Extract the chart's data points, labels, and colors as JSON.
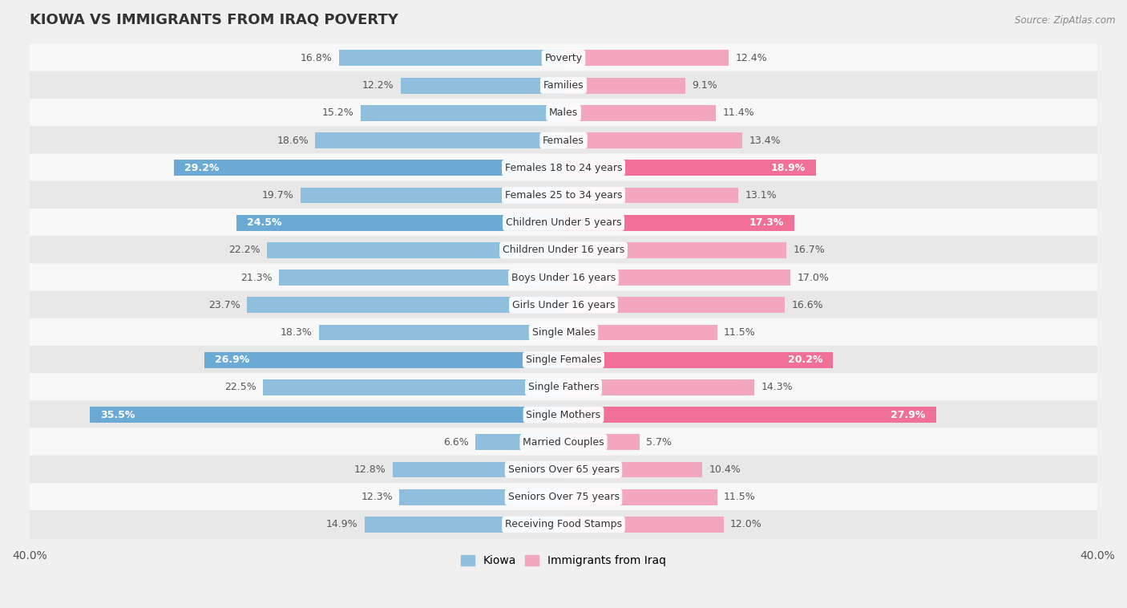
{
  "title": "KIOWA VS IMMIGRANTS FROM IRAQ POVERTY",
  "source": "Source: ZipAtlas.com",
  "categories": [
    "Poverty",
    "Families",
    "Males",
    "Females",
    "Females 18 to 24 years",
    "Females 25 to 34 years",
    "Children Under 5 years",
    "Children Under 16 years",
    "Boys Under 16 years",
    "Girls Under 16 years",
    "Single Males",
    "Single Females",
    "Single Fathers",
    "Single Mothers",
    "Married Couples",
    "Seniors Over 65 years",
    "Seniors Over 75 years",
    "Receiving Food Stamps"
  ],
  "kiowa_values": [
    16.8,
    12.2,
    15.2,
    18.6,
    29.2,
    19.7,
    24.5,
    22.2,
    21.3,
    23.7,
    18.3,
    26.9,
    22.5,
    35.5,
    6.6,
    12.8,
    12.3,
    14.9
  ],
  "iraq_values": [
    12.4,
    9.1,
    11.4,
    13.4,
    18.9,
    13.1,
    17.3,
    16.7,
    17.0,
    16.6,
    11.5,
    20.2,
    14.3,
    27.9,
    5.7,
    10.4,
    11.5,
    12.0
  ],
  "kiowa_color": "#90bedd",
  "iraq_color": "#f2a7be",
  "kiowa_highlight_color": "#6aaad4",
  "iraq_highlight_color": "#f07097",
  "highlight_rows": [
    4,
    6,
    11,
    13
  ],
  "xlim": 40.0,
  "bar_height": 0.58,
  "background_color": "#f0f0f0",
  "row_color_even": "#f8f8f8",
  "row_color_odd": "#e8e8e8",
  "label_fontsize": 9.0,
  "value_fontsize": 9.0,
  "title_fontsize": 13,
  "value_text_color_outside": "#555555",
  "value_text_color_inside": "#ffffff"
}
